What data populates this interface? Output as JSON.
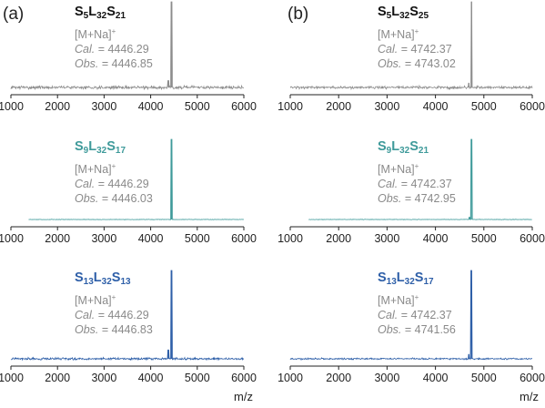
{
  "figure": {
    "xlabel": "m/z"
  },
  "panels": [
    {
      "label": "(a)"
    },
    {
      "label": "(b)"
    }
  ],
  "chart_data": [
    {
      "type": "line",
      "panel": "(a)",
      "row": 1,
      "title_formula": [
        [
          "S",
          "5"
        ],
        [
          "L",
          "32"
        ],
        [
          "S",
          "21"
        ]
      ],
      "ion": "[M+Na]",
      "ion_sup": "+",
      "cal_label": "Cal.",
      "cal_value": "= 4446.29",
      "obs_label": "Obs.",
      "obs_value": "= 4446.85",
      "color": "#8c8c8c",
      "xlim": [
        1000,
        6000
      ],
      "xticks": [
        1000,
        2000,
        3000,
        4000,
        5000,
        6000
      ],
      "trace_range": [
        1000,
        6000
      ],
      "baseline_noise": 0.04,
      "peaks": [
        {
          "x": 4446.85,
          "y": 1.0
        },
        {
          "x": 4380,
          "y": 0.08
        }
      ]
    },
    {
      "type": "line",
      "panel": "(b)",
      "row": 1,
      "title_formula": [
        [
          "S",
          "5"
        ],
        [
          "L",
          "32"
        ],
        [
          "S",
          "25"
        ]
      ],
      "ion": "[M+Na]",
      "ion_sup": "+",
      "cal_label": "Cal.",
      "cal_value": "= 4742.37",
      "obs_label": "Obs.",
      "obs_value": "= 4743.02",
      "color": "#8c8c8c",
      "xlim": [
        1000,
        6000
      ],
      "xticks": [
        1000,
        2000,
        3000,
        4000,
        5000,
        6000
      ],
      "trace_range": [
        1000,
        6000
      ],
      "baseline_noise": 0.035,
      "peaks": [
        {
          "x": 4743.02,
          "y": 1.0
        },
        {
          "x": 4690,
          "y": 0.05
        }
      ]
    },
    {
      "type": "line",
      "panel": "(a)",
      "row": 2,
      "title_formula": [
        [
          "S",
          "9"
        ],
        [
          "L",
          "32"
        ],
        [
          "S",
          "17"
        ]
      ],
      "ion": "[M+Na]",
      "ion_sup": "+",
      "cal_label": "Cal.",
      "cal_value": "= 4446.29",
      "obs_label": "Obs.",
      "obs_value": "= 4446.03",
      "color": "#3e9a9a",
      "xlim": [
        1000,
        6000
      ],
      "xticks": [
        1000,
        2000,
        3000,
        4000,
        5000,
        6000
      ],
      "trace_range": [
        1380,
        6000
      ],
      "baseline_noise": 0.006,
      "peaks": [
        {
          "x": 4446.03,
          "y": 1.0
        }
      ]
    },
    {
      "type": "line",
      "panel": "(b)",
      "row": 2,
      "title_formula": [
        [
          "S",
          "9"
        ],
        [
          "L",
          "32"
        ],
        [
          "S",
          "21"
        ]
      ],
      "ion": "[M+Na]",
      "ion_sup": "+",
      "cal_label": "Cal.",
      "cal_value": "= 4742.37",
      "obs_label": "Obs.",
      "obs_value": "= 4742.95",
      "color": "#3e9a9a",
      "xlim": [
        1000,
        6000
      ],
      "xticks": [
        1000,
        2000,
        3000,
        4000,
        5000,
        6000
      ],
      "trace_range": [
        1380,
        6000
      ],
      "baseline_noise": 0.006,
      "peaks": [
        {
          "x": 4742.95,
          "y": 1.0
        },
        {
          "x": 4700,
          "y": 0.03
        }
      ]
    },
    {
      "type": "line",
      "panel": "(a)",
      "row": 3,
      "title_formula": [
        [
          "S",
          "13"
        ],
        [
          "L",
          "32"
        ],
        [
          "S",
          "13"
        ]
      ],
      "ion": "[M+Na]",
      "ion_sup": "+",
      "cal_label": "Cal.",
      "cal_value": "= 4446.29",
      "obs_label": "Obs.",
      "obs_value": "= 4446.83",
      "color": "#2e5fa8",
      "xlim": [
        1000,
        6000
      ],
      "xticks": [
        1000,
        2000,
        3000,
        4000,
        5000,
        6000
      ],
      "trace_range": [
        1000,
        6000
      ],
      "baseline_noise": 0.03,
      "peaks": [
        {
          "x": 4446.83,
          "y": 1.0
        },
        {
          "x": 4380,
          "y": 0.1
        }
      ]
    },
    {
      "type": "line",
      "panel": "(b)",
      "row": 3,
      "title_formula": [
        [
          "S",
          "13"
        ],
        [
          "L",
          "32"
        ],
        [
          "S",
          "17"
        ]
      ],
      "ion": "[M+Na]",
      "ion_sup": "+",
      "cal_label": "Cal.",
      "cal_value": "= 4742.37",
      "obs_label": "Obs.",
      "obs_value": "= 4741.56",
      "color": "#2e5fa8",
      "xlim": [
        1000,
        6000
      ],
      "xticks": [
        1000,
        2000,
        3000,
        4000,
        5000,
        6000
      ],
      "trace_range": [
        1000,
        6000
      ],
      "baseline_noise": 0.02,
      "peaks": [
        {
          "x": 4741.56,
          "y": 1.0
        },
        {
          "x": 4690,
          "y": 0.05
        }
      ]
    }
  ]
}
